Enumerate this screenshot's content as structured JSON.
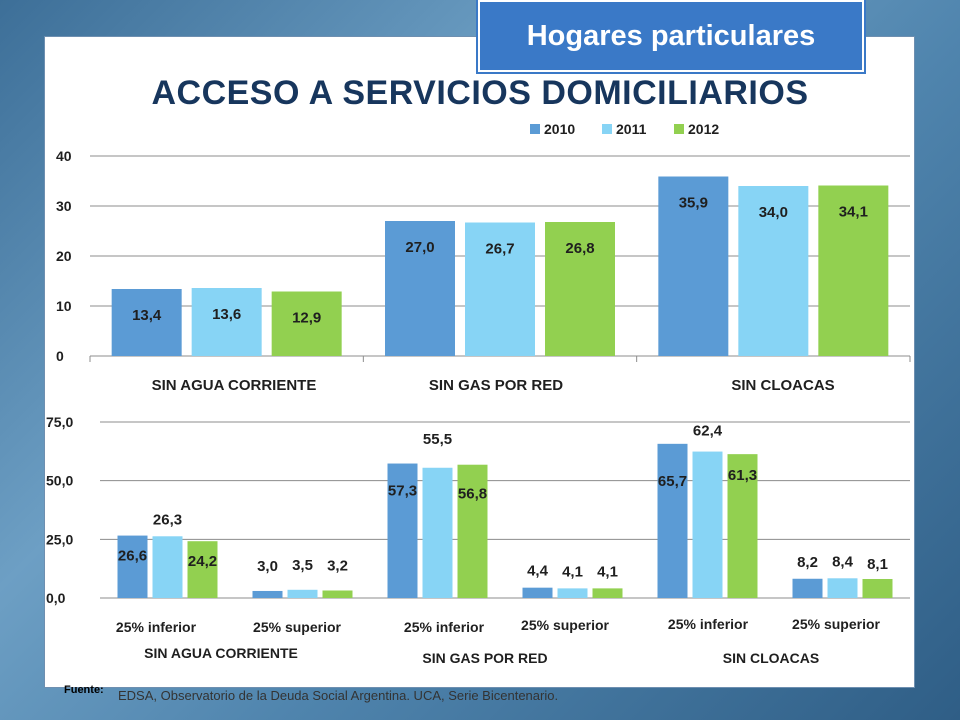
{
  "header": {
    "badge": "Hogares particulares",
    "title": "ACCESO A SERVICIOS DOMICILIARIOS"
  },
  "footer": {
    "source_label": "Fuente:",
    "source_text": "EDSA, Observatorio de la Deuda Social Argentina. UCA, Serie Bicentenario."
  },
  "colors": {
    "2010": "#5b9bd5",
    "2011": "#87d4f5",
    "2012": "#92d050",
    "text": "#17365d"
  },
  "chart_data": [
    {
      "type": "bar",
      "title": "ACCESO A SERVICIOS DOMICILIARIOS",
      "categories": [
        "SIN AGUA CORRIENTE",
        "SIN GAS POR RED",
        "SIN CLOACAS"
      ],
      "series": [
        {
          "name": "2010",
          "values": [
            13.4,
            27.0,
            35.9
          ],
          "labels": [
            "13,4",
            "27,0",
            "35,9"
          ]
        },
        {
          "name": "2011",
          "values": [
            13.6,
            26.7,
            34.0
          ],
          "labels": [
            "13,6",
            "26,7",
            "34,0"
          ]
        },
        {
          "name": "2012",
          "values": [
            12.9,
            26.8,
            34.1
          ],
          "labels": [
            "12,9",
            "26,8",
            "34,1"
          ]
        }
      ],
      "yticks": [
        "0",
        "10",
        "20",
        "30",
        "40"
      ],
      "ylim": [
        0,
        40
      ],
      "legend": "top-right",
      "grid": true
    },
    {
      "type": "bar",
      "categories": [
        "25% inferior",
        "25% superior",
        "25% inferior",
        "25% superior",
        "25% inferior",
        "25% superior"
      ],
      "groups": [
        "SIN AGUA CORRIENTE",
        "SIN GAS POR RED",
        "SIN CLOACAS"
      ],
      "series": [
        {
          "name": "2010",
          "values": [
            26.6,
            3.0,
            57.3,
            4.4,
            65.7,
            8.2
          ],
          "labels": [
            "26,6",
            "3,0",
            "57,3",
            "4,4",
            "65,7",
            "8,2"
          ]
        },
        {
          "name": "2011",
          "values": [
            26.3,
            3.5,
            55.5,
            4.1,
            62.4,
            8.4
          ],
          "labels": [
            "26,3",
            "3,5",
            "55,5",
            "4,1",
            "62,4",
            "8,4"
          ]
        },
        {
          "name": "2012",
          "values": [
            24.2,
            3.2,
            56.8,
            4.1,
            61.3,
            8.1
          ],
          "labels": [
            "24,2",
            "3,2",
            "56,8",
            "4,1",
            "61,3",
            "8,1"
          ]
        }
      ],
      "yticks": [
        "0,0",
        "25,0",
        "50,0",
        "75,0"
      ],
      "ylim": [
        0,
        75
      ],
      "grid": true
    }
  ]
}
